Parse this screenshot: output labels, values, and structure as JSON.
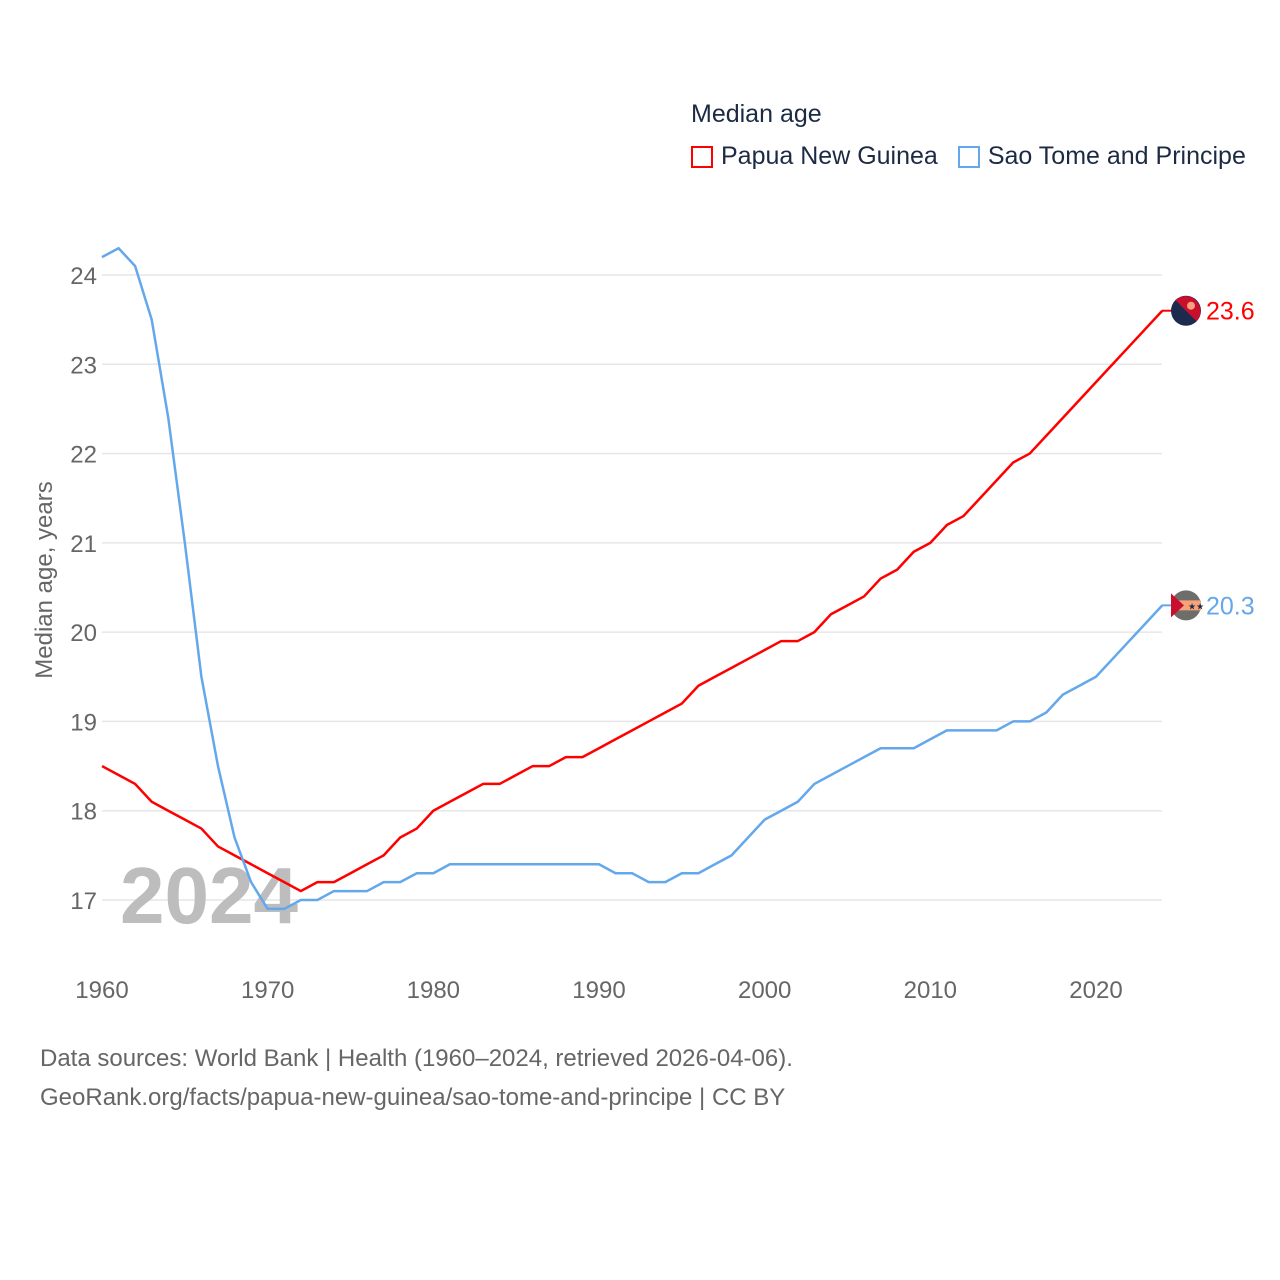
{
  "chart_data": {
    "type": "line",
    "title": "Median age",
    "xlabel": "",
    "ylabel": "Median age, years",
    "xlim": [
      1960,
      2024
    ],
    "ylim": [
      16.5,
      24.4
    ],
    "xticks": [
      1960,
      1970,
      1980,
      1990,
      2000,
      2010,
      2020
    ],
    "yticks": [
      17,
      18,
      19,
      20,
      21,
      22,
      23,
      24
    ],
    "grid": true,
    "legend_position": "top-right",
    "year_watermark": "2024",
    "x": [
      1960,
      1961,
      1962,
      1963,
      1964,
      1965,
      1966,
      1967,
      1968,
      1969,
      1970,
      1971,
      1972,
      1973,
      1974,
      1975,
      1976,
      1977,
      1978,
      1979,
      1980,
      1981,
      1982,
      1983,
      1984,
      1985,
      1986,
      1987,
      1988,
      1989,
      1990,
      1991,
      1992,
      1993,
      1994,
      1995,
      1996,
      1997,
      1998,
      1999,
      2000,
      2001,
      2002,
      2003,
      2004,
      2005,
      2006,
      2007,
      2008,
      2009,
      2010,
      2011,
      2012,
      2013,
      2014,
      2015,
      2016,
      2017,
      2018,
      2019,
      2020,
      2021,
      2022,
      2023,
      2024
    ],
    "series": [
      {
        "name": "Papua New Guinea",
        "color": "#ff0000",
        "end_label": "23.6",
        "values": [
          18.5,
          18.4,
          18.3,
          18.1,
          18.0,
          17.9,
          17.8,
          17.6,
          17.5,
          17.4,
          17.3,
          17.2,
          17.1,
          17.2,
          17.2,
          17.3,
          17.4,
          17.5,
          17.7,
          17.8,
          18.0,
          18.1,
          18.2,
          18.3,
          18.3,
          18.4,
          18.5,
          18.5,
          18.6,
          18.6,
          18.7,
          18.8,
          18.9,
          19.0,
          19.1,
          19.2,
          19.4,
          19.5,
          19.6,
          19.7,
          19.8,
          19.9,
          19.9,
          20.0,
          20.2,
          20.3,
          20.4,
          20.6,
          20.7,
          20.9,
          21.0,
          21.2,
          21.3,
          21.5,
          21.7,
          21.9,
          22.0,
          22.2,
          22.4,
          22.6,
          22.8,
          23.0,
          23.2,
          23.4,
          23.6
        ]
      },
      {
        "name": "Sao Tome and Principe",
        "color": "#64a8ec",
        "end_label": "20.3",
        "values": [
          24.2,
          24.3,
          24.1,
          23.5,
          22.4,
          21.0,
          19.5,
          18.5,
          17.7,
          17.2,
          16.9,
          16.9,
          17.0,
          17.0,
          17.1,
          17.1,
          17.1,
          17.2,
          17.2,
          17.3,
          17.3,
          17.4,
          17.4,
          17.4,
          17.4,
          17.4,
          17.4,
          17.4,
          17.4,
          17.4,
          17.4,
          17.3,
          17.3,
          17.2,
          17.2,
          17.3,
          17.3,
          17.4,
          17.5,
          17.7,
          17.9,
          18.0,
          18.1,
          18.3,
          18.4,
          18.5,
          18.6,
          18.7,
          18.7,
          18.7,
          18.8,
          18.9,
          18.9,
          18.9,
          18.9,
          19.0,
          19.0,
          19.1,
          19.3,
          19.4,
          19.5,
          19.7,
          19.9,
          20.1,
          20.3
        ]
      }
    ]
  },
  "footer": {
    "line1": "Data sources: World Bank | Health (1960–2024, retrieved 2026-04-06).",
    "line2": "GeoRank.org/facts/papua-new-guinea/sao-tome-and-principe | CC BY"
  }
}
